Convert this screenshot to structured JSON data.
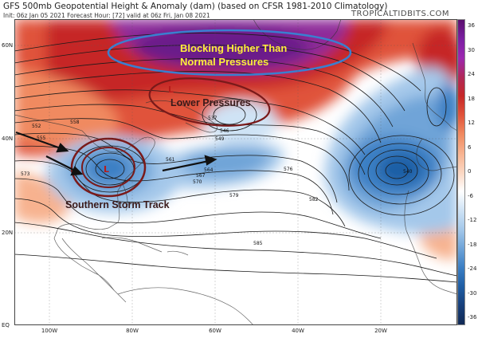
{
  "header": {
    "title": "GFS 500mb Geopotential Height & Anomaly (dam) (based on CFSR 1981-2010 Climatology)",
    "subtitle": "Init: 06z Jan 05 2021   Forecast Hour: [72]   valid at 06z Fri, Jan 08 2021",
    "site": "TROPICALTIDBITS.COM"
  },
  "axes": {
    "lat_labels": [
      "60N",
      "40N",
      "20N",
      "EQ"
    ],
    "lon_labels": [
      "100W",
      "80W",
      "60W",
      "40W",
      "20W"
    ]
  },
  "colorbar": {
    "ticks": [
      "36",
      "30",
      "24",
      "18",
      "12",
      "6",
      "0",
      "-6",
      "-12",
      "-18",
      "-24",
      "-30",
      "-36"
    ],
    "colors": [
      "#5b0f6e",
      "#7b1fa2",
      "#9c27b0",
      "#b02858",
      "#c62828",
      "#e0533a",
      "#f08a60",
      "#f7b28f",
      "#fbd6c1",
      "#ffffff",
      "#cfe3f5",
      "#a4c8ea",
      "#6fa4d8",
      "#3b7fc4",
      "#1f5ea5",
      "#173f7a",
      "#112a55"
    ]
  },
  "contour_labels": [
    "537",
    "540",
    "546",
    "549",
    "552",
    "555",
    "558",
    "561",
    "564",
    "567",
    "570",
    "573",
    "576",
    "579",
    "582",
    "585"
  ],
  "annotations": {
    "blocking_line1": "Blocking Higher Than",
    "blocking_line2": "Normal Pressures",
    "lower_pressures": "Lower Pressures",
    "storm_track": "Southern Storm Track"
  },
  "markers": {
    "low_symbol": "L"
  },
  "colors": {
    "blocking_ellipse": "#3a7fd0",
    "storm_circles": "#7a1a1a",
    "annotation_yellow": "#ffef3a",
    "arrow": "#111111"
  }
}
